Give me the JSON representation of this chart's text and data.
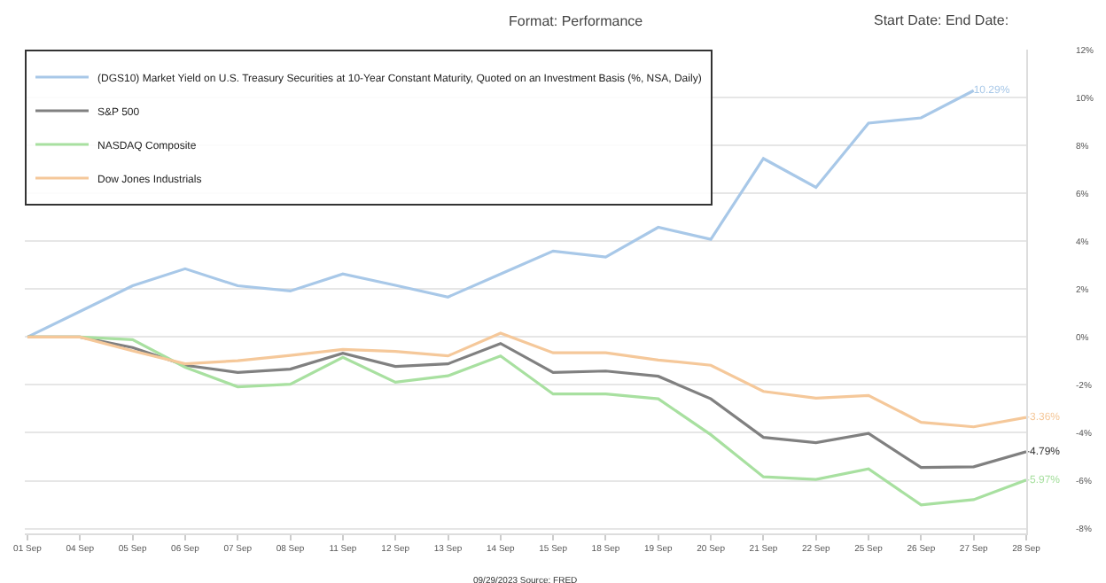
{
  "chart_data": {
    "type": "line",
    "title": "Format: Performance",
    "annotations": [
      "Start Date: End Date:",
      "09/29/2023 Source: FRED"
    ],
    "categories": [
      "01 Sep",
      "04 Sep",
      "05 Sep",
      "06 Sep",
      "07 Sep",
      "08 Sep",
      "11 Sep",
      "12 Sep",
      "13 Sep",
      "14 Sep",
      "15 Sep",
      "18 Sep",
      "19 Sep",
      "20 Sep",
      "21 Sep",
      "22 Sep",
      "25 Sep",
      "26 Sep",
      "27 Sep",
      "28 Sep"
    ],
    "series": [
      {
        "name": "(DGS10) Market Yield on U.S. Treasury Securities at 10-Year Constant Maturity, Quoted on an Investment Basis (%, NSA, Daily)",
        "color": "#a8c8e8",
        "values": [
          0,
          1.07,
          2.14,
          2.85,
          2.14,
          1.92,
          2.63,
          2.16,
          1.67,
          2.63,
          3.59,
          3.34,
          4.58,
          4.08,
          7.45,
          6.25,
          8.93,
          9.15,
          10.29,
          null
        ],
        "value_labels": [
          null,
          null,
          null,
          null,
          null,
          null,
          null,
          null,
          null,
          null,
          null,
          null,
          null,
          null,
          null,
          null,
          null,
          null,
          "10.29%",
          null
        ]
      },
      {
        "name": "S&P 500",
        "color": "#808080",
        "values": [
          0,
          0,
          -0.44,
          -1.18,
          -1.48,
          -1.34,
          -0.68,
          -1.23,
          -1.12,
          -0.27,
          -1.48,
          -1.42,
          -1.64,
          -2.58,
          -4.19,
          -4.41,
          -4.03,
          -5.45,
          -5.42,
          -4.79
        ],
        "value_labels": [
          null,
          null,
          null,
          null,
          null,
          null,
          null,
          null,
          null,
          null,
          null,
          null,
          null,
          null,
          null,
          null,
          null,
          null,
          null,
          "-4.79%"
        ]
      },
      {
        "name": "NASDAQ Composite",
        "color": "#a8e0a0",
        "values": [
          0,
          0,
          -0.11,
          -1.26,
          -2.08,
          -1.97,
          -0.85,
          -1.89,
          -1.62,
          -0.79,
          -2.38,
          -2.38,
          -2.58,
          -4.08,
          -5.84,
          -5.95,
          -5.51,
          -7.01,
          -6.79,
          -5.97
        ],
        "value_labels": [
          null,
          null,
          null,
          null,
          null,
          null,
          null,
          null,
          null,
          null,
          null,
          null,
          null,
          null,
          null,
          null,
          null,
          null,
          null,
          "-5.97%"
        ]
      },
      {
        "name": "Dow Jones Industrials",
        "color": "#f5c89a",
        "values": [
          0,
          0,
          -0.58,
          -1.12,
          -0.99,
          -0.77,
          -0.52,
          -0.6,
          -0.79,
          0.16,
          -0.66,
          -0.66,
          -0.96,
          -1.18,
          -2.27,
          -2.55,
          -2.44,
          -3.56,
          -3.75,
          -3.36
        ],
        "value_labels": [
          null,
          null,
          null,
          null,
          null,
          null,
          null,
          null,
          null,
          null,
          null,
          null,
          null,
          null,
          null,
          null,
          null,
          null,
          null,
          "-3.36%"
        ]
      }
    ],
    "ylim": [
      -8.2,
      12
    ],
    "yticks": [
      {
        "value": -8,
        "label": "-8%"
      },
      {
        "value": -6,
        "label": "-6%"
      },
      {
        "value": -4,
        "label": "-4%"
      },
      {
        "value": -2,
        "label": "-2%"
      },
      {
        "value": 0,
        "label": "0%"
      },
      {
        "value": 2,
        "label": "2%"
      },
      {
        "value": 4,
        "label": "4%"
      },
      {
        "value": 6,
        "label": "6%"
      },
      {
        "value": 8,
        "label": "8%"
      },
      {
        "value": 10,
        "label": "10%"
      },
      {
        "value": 12,
        "label": "12%"
      }
    ],
    "grid": "y",
    "legend": "top left",
    "marker": "none",
    "line_style": "solid"
  }
}
